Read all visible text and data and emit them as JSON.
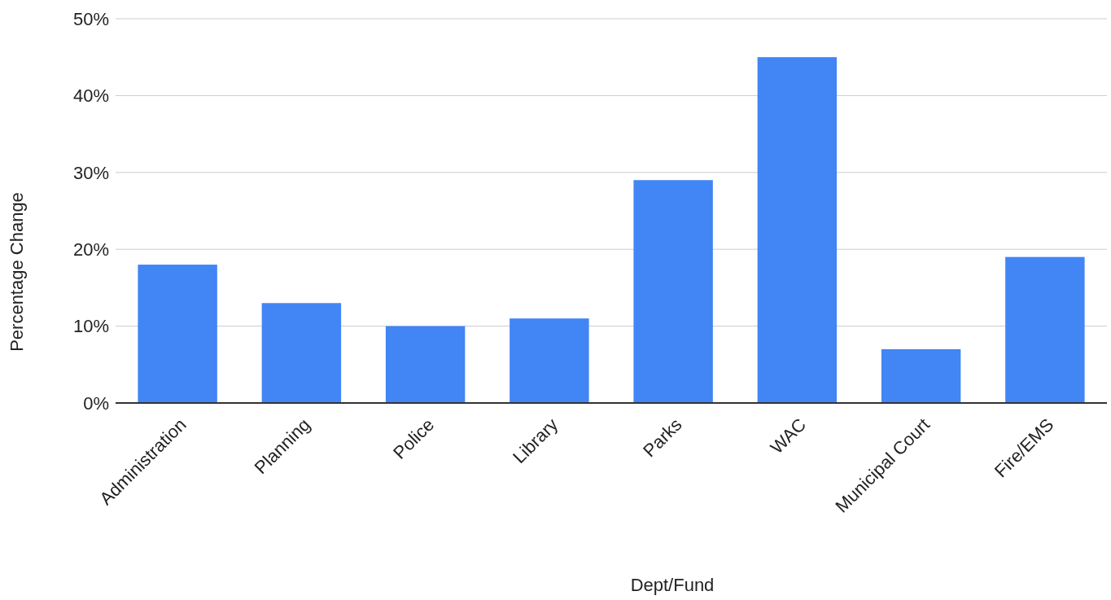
{
  "chart_data": {
    "type": "bar",
    "xlabel": "Dept/Fund",
    "ylabel": "Percentage Change",
    "categories": [
      "Administration",
      "Planning",
      "Police",
      "Library",
      "Parks",
      "WAC",
      "Municipal Court",
      "Fire/EMS"
    ],
    "values": [
      18,
      13,
      10,
      11,
      29,
      45,
      7,
      19
    ],
    "color": "#4285f4",
    "ylim": [
      0,
      50
    ],
    "yticks": [
      {
        "value": 0,
        "label": "0%"
      },
      {
        "value": 10,
        "label": "10%"
      },
      {
        "value": 20,
        "label": "20%"
      },
      {
        "value": 30,
        "label": "30%"
      },
      {
        "value": 40,
        "label": "40%"
      },
      {
        "value": 50,
        "label": "50%"
      }
    ],
    "grid": "y"
  }
}
